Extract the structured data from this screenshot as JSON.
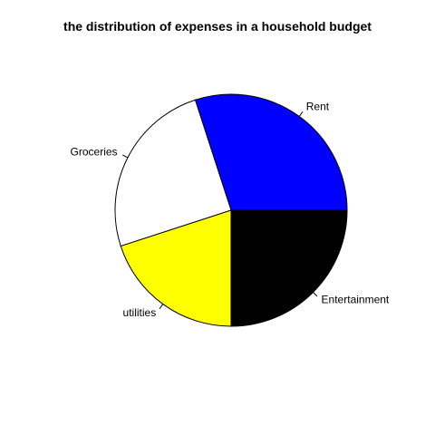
{
  "chart_data": {
    "type": "pie",
    "title": "the distribution of expenses in a household budget",
    "categories": [
      "Rent",
      "Groceries",
      "utilities",
      "Entertainment"
    ],
    "values": [
      30,
      25,
      20,
      25
    ],
    "colors": [
      "#0000FF",
      "#FFFFFF",
      "#FFFF00",
      "#000000"
    ],
    "start_angle_deg": 0,
    "direction": "counterclockwise",
    "slice_border_color": "#000000"
  }
}
